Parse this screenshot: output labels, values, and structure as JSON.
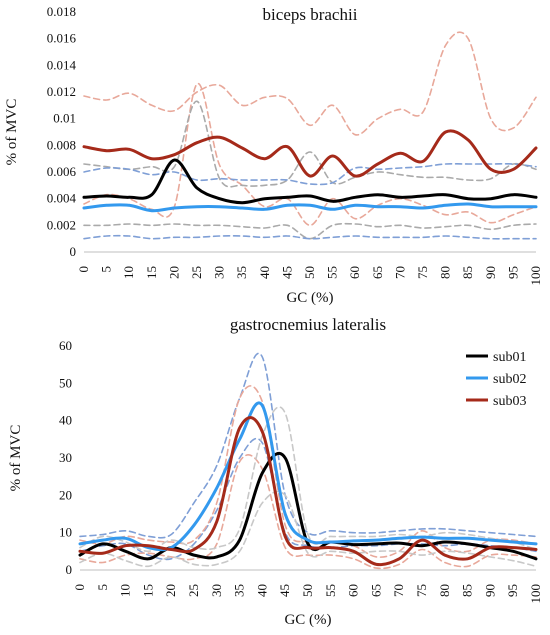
{
  "chart_data": [
    {
      "type": "line",
      "title": "biceps brachii",
      "xlabel": "GC (%)",
      "ylabel": "% of MVC",
      "xlim": [
        0,
        100
      ],
      "ylim": [
        0,
        0.018
      ],
      "xticks": [
        "0",
        "5",
        "10",
        "15",
        "20",
        "25",
        "30",
        "35",
        "40",
        "45",
        "50",
        "55",
        "60",
        "65",
        "70",
        "75",
        "80",
        "85",
        "90",
        "95",
        "100"
      ],
      "yticks": [
        "0",
        "0.002",
        "0.004",
        "0.006",
        "0.008",
        "0.01",
        "0.012",
        "0.014",
        "0.016",
        "0.018"
      ],
      "grid": false,
      "legend": "none",
      "x": [
        0,
        5,
        10,
        15,
        20,
        25,
        30,
        35,
        40,
        45,
        50,
        55,
        60,
        65,
        70,
        75,
        80,
        85,
        90,
        95,
        100
      ],
      "series": [
        {
          "color": "#000000",
          "style": "solid",
          "values": [
            0.0041,
            0.0042,
            0.0041,
            0.0043,
            0.0069,
            0.0048,
            0.004,
            0.0037,
            0.004,
            0.0041,
            0.0042,
            0.0038,
            0.0041,
            0.0043,
            0.0041,
            0.0042,
            0.0043,
            0.004,
            0.004,
            0.0043,
            0.0041
          ]
        },
        {
          "color": "#3399ee",
          "style": "solid",
          "values": [
            0.0033,
            0.0035,
            0.0035,
            0.0031,
            0.0033,
            0.0034,
            0.0034,
            0.0033,
            0.0032,
            0.0035,
            0.0035,
            0.0032,
            0.0035,
            0.0034,
            0.0034,
            0.0033,
            0.0035,
            0.0036,
            0.0034,
            0.0034,
            0.0034
          ]
        },
        {
          "color": "#a52a1a",
          "style": "solid",
          "values": [
            0.0079,
            0.0076,
            0.0077,
            0.007,
            0.0073,
            0.0082,
            0.0086,
            0.0078,
            0.007,
            0.0079,
            0.0057,
            0.0072,
            0.0057,
            0.0066,
            0.0074,
            0.0068,
            0.009,
            0.0084,
            0.0062,
            0.0062,
            0.0078
          ]
        },
        {
          "color": "#e8a89a",
          "style": "dashed",
          "values": [
            0.0117,
            0.0114,
            0.0119,
            0.011,
            0.0106,
            0.012,
            0.0125,
            0.011,
            0.0116,
            0.0115,
            0.0095,
            0.011,
            0.0088,
            0.01,
            0.0107,
            0.0105,
            0.0155,
            0.016,
            0.01,
            0.0093,
            0.0116
          ]
        },
        {
          "color": "#e8a89a",
          "style": "dashed",
          "values": [
            0.0036,
            0.0043,
            0.004,
            0.0032,
            0.0034,
            0.0126,
            0.0065,
            0.005,
            0.0034,
            0.004,
            0.002,
            0.004,
            0.0025,
            0.0035,
            0.004,
            0.0035,
            0.0028,
            0.003,
            0.0022,
            0.0028,
            0.0034
          ]
        },
        {
          "color": "#aaaaaa",
          "style": "dashed",
          "values": [
            0.0066,
            0.0064,
            0.0062,
            0.0064,
            0.0064,
            0.0113,
            0.0055,
            0.005,
            0.005,
            0.0054,
            0.0075,
            0.0052,
            0.0056,
            0.006,
            0.0058,
            0.0056,
            0.0056,
            0.0054,
            0.0055,
            0.0066,
            0.0062
          ]
        },
        {
          "color": "#aaaaaa",
          "style": "dashed",
          "values": [
            0.002,
            0.002,
            0.0021,
            0.002,
            0.0021,
            0.002,
            0.002,
            0.0019,
            0.0018,
            0.002,
            0.001,
            0.002,
            0.0021,
            0.0019,
            0.002,
            0.0018,
            0.0019,
            0.002,
            0.0017,
            0.002,
            0.0021
          ]
        },
        {
          "color": "#7f9fd6",
          "style": "dashed",
          "values": [
            0.006,
            0.0063,
            0.0062,
            0.0058,
            0.006,
            0.0054,
            0.0055,
            0.0054,
            0.0054,
            0.0054,
            0.0051,
            0.0052,
            0.0063,
            0.0062,
            0.0063,
            0.0064,
            0.0066,
            0.0066,
            0.0066,
            0.0066,
            0.0064
          ]
        },
        {
          "color": "#7f9fd6",
          "style": "dashed",
          "values": [
            0.001,
            0.0012,
            0.0012,
            0.001,
            0.0011,
            0.0011,
            0.0012,
            0.0012,
            0.0011,
            0.0012,
            0.001,
            0.0011,
            0.0012,
            0.0011,
            0.0011,
            0.0011,
            0.0012,
            0.0011,
            0.001,
            0.001,
            0.001
          ]
        }
      ]
    },
    {
      "type": "line",
      "title": "gastrocnemius lateralis",
      "xlabel": "GC (%)",
      "ylabel": "% of MVC",
      "xlim": [
        0,
        100
      ],
      "ylim": [
        0,
        60
      ],
      "xticks": [
        "0",
        "5",
        "10",
        "15",
        "20",
        "25",
        "30",
        "35",
        "40",
        "45",
        "50",
        "55",
        "60",
        "65",
        "70",
        "75",
        "80",
        "85",
        "90",
        "95",
        "100"
      ],
      "yticks": [
        "0",
        "10",
        "20",
        "30",
        "40",
        "50",
        "60"
      ],
      "grid": false,
      "legend": "top-right",
      "x": [
        0,
        5,
        10,
        15,
        20,
        25,
        30,
        35,
        40,
        45,
        50,
        55,
        60,
        65,
        70,
        75,
        80,
        85,
        90,
        95,
        100
      ],
      "series": [
        {
          "name": "sub01",
          "color": "#000000",
          "style": "solid",
          "values": [
            4.0,
            7.0,
            5.0,
            3.0,
            6.0,
            4.0,
            3.5,
            8.0,
            26.0,
            30.0,
            7.0,
            7.5,
            6.8,
            7.0,
            7.2,
            6.5,
            7.5,
            7.0,
            6.0,
            5.0,
            3.0
          ]
        },
        {
          "name": "sub02",
          "color": "#3399ee",
          "style": "solid",
          "values": [
            7.0,
            8.0,
            8.5,
            6.0,
            6.0,
            12.0,
            22.0,
            35.0,
            44.0,
            15.0,
            8.0,
            7.5,
            7.8,
            8.0,
            8.5,
            8.8,
            8.5,
            8.5,
            8.0,
            7.5,
            7.0
          ]
        },
        {
          "name": "sub03",
          "color": "#a52a1a",
          "style": "solid",
          "values": [
            5.0,
            4.5,
            6.5,
            6.5,
            5.5,
            5.5,
            13.0,
            38.0,
            37.0,
            9.0,
            6.0,
            6.0,
            5.0,
            1.5,
            3.0,
            8.0,
            4.0,
            3.0,
            6.0,
            6.0,
            5.5
          ]
        },
        {
          "color": "#7f9fd6",
          "style": "dashed",
          "values": [
            9.0,
            9.5,
            10.5,
            9.0,
            9.5,
            18.0,
            28.0,
            46.0,
            57.0,
            20.0,
            10.0,
            10.5,
            10.0,
            10.0,
            10.5,
            11.0,
            11.0,
            10.5,
            10.0,
            9.5,
            9.0
          ]
        },
        {
          "color": "#7f9fd6",
          "style": "dashed",
          "values": [
            5.0,
            6.5,
            7.0,
            4.0,
            3.0,
            7.0,
            16.0,
            30.0,
            34.0,
            10.0,
            6.5,
            6.0,
            6.5,
            6.5,
            7.0,
            7.0,
            6.5,
            7.0,
            6.5,
            6.0,
            5.0
          ]
        },
        {
          "color": "#e8a89a",
          "style": "dashed",
          "values": [
            8.0,
            7.0,
            9.0,
            8.0,
            7.5,
            8.0,
            18.0,
            46.0,
            45.0,
            12.0,
            7.5,
            7.5,
            6.5,
            3.5,
            5.0,
            10.5,
            6.0,
            5.0,
            8.0,
            8.0,
            7.0
          ]
        },
        {
          "color": "#e8a89a",
          "style": "dashed",
          "values": [
            3.0,
            2.0,
            4.0,
            4.5,
            3.5,
            3.0,
            7.0,
            29.0,
            27.0,
            6.0,
            4.0,
            4.0,
            3.0,
            0.5,
            1.5,
            5.5,
            2.0,
            1.0,
            4.0,
            4.0,
            3.5
          ]
        },
        {
          "color": "#c8c8c8",
          "style": "dashed",
          "values": [
            6.0,
            9.0,
            7.5,
            5.0,
            8.0,
            6.0,
            6.0,
            11.0,
            36.0,
            42.0,
            9.5,
            9.0,
            9.0,
            9.0,
            9.5,
            9.0,
            10.0,
            9.5,
            8.5,
            7.5,
            5.5
          ]
        },
        {
          "color": "#c8c8c8",
          "style": "dashed",
          "values": [
            2.0,
            4.5,
            2.5,
            1.0,
            3.5,
            1.5,
            1.5,
            5.0,
            18.0,
            20.0,
            4.5,
            5.0,
            4.5,
            5.0,
            5.0,
            4.0,
            5.0,
            4.5,
            3.5,
            2.5,
            1.0
          ]
        }
      ]
    }
  ]
}
